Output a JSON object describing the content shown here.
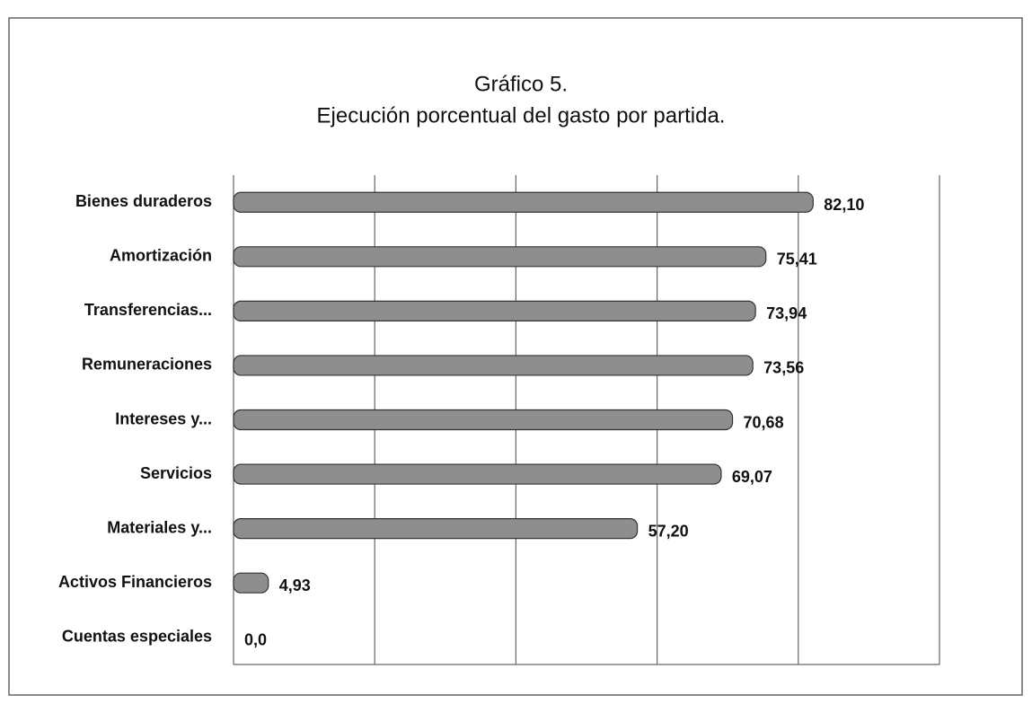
{
  "chart_data": {
    "type": "bar",
    "orientation": "horizontal",
    "title": "Gráfico 5.",
    "subtitle": "Ejecución porcentual del gasto por partida.",
    "categories": [
      "Bienes duraderos",
      "Amortización",
      "Transferencias...",
      "Remuneraciones",
      "Intereses y...",
      "Servicios",
      "Materiales y...",
      "Activos Financieros",
      "Cuentas especiales"
    ],
    "values": [
      82.1,
      75.41,
      73.94,
      73.56,
      70.68,
      69.07,
      57.2,
      4.93,
      0
    ],
    "value_labels": [
      "82,10",
      "75,41",
      "73,94",
      "73,56",
      "70,68",
      "69,07",
      "57,20",
      "4,93",
      "0,0"
    ],
    "color": "#8e8e8e",
    "xlim": [
      0,
      100
    ],
    "xticks": [
      0,
      20,
      40,
      60,
      80,
      100
    ],
    "grid": true
  }
}
